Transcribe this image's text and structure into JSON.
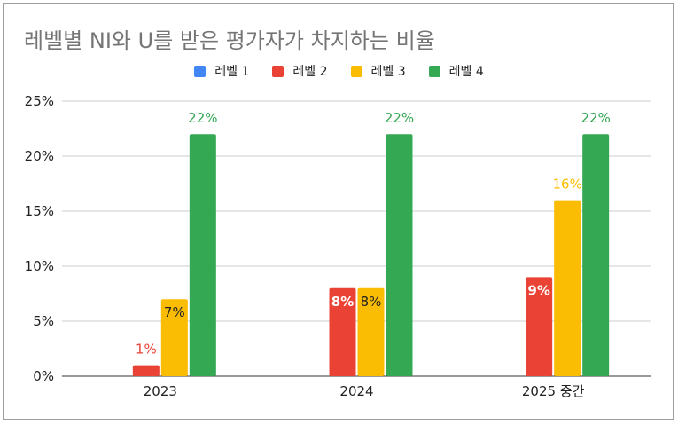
{
  "chart_data": {
    "type": "bar",
    "title": "레벨별 NI와 U를 받은 평가자가 차지하는 비율",
    "categories": [
      "2023",
      "2024",
      "2025 중간"
    ],
    "series": [
      {
        "name": "레벨 1",
        "color": "#4285f4",
        "values": [
          0,
          0,
          0
        ],
        "labels": [
          "",
          "",
          ""
        ]
      },
      {
        "name": "레벨 2",
        "color": "#ea4335",
        "values": [
          1,
          8,
          9
        ],
        "labels": [
          "1%",
          "8%",
          "9%"
        ]
      },
      {
        "name": "레벨 3",
        "color": "#fbbc04",
        "values": [
          7,
          8,
          16
        ],
        "labels": [
          "7%",
          "8%",
          "16%"
        ]
      },
      {
        "name": "레벨 4",
        "color": "#34a853",
        "values": [
          22,
          22,
          22
        ],
        "labels": [
          "22%",
          "22%",
          "22%"
        ]
      }
    ],
    "ylim": [
      0,
      25
    ],
    "yticks": [
      0,
      5,
      10,
      15,
      20,
      25
    ],
    "ytick_labels": [
      "0%",
      "5%",
      "10%",
      "15%",
      "20%",
      "25%"
    ],
    "xlabel": "",
    "ylabel": "",
    "grid": true,
    "legend_position": "top"
  }
}
